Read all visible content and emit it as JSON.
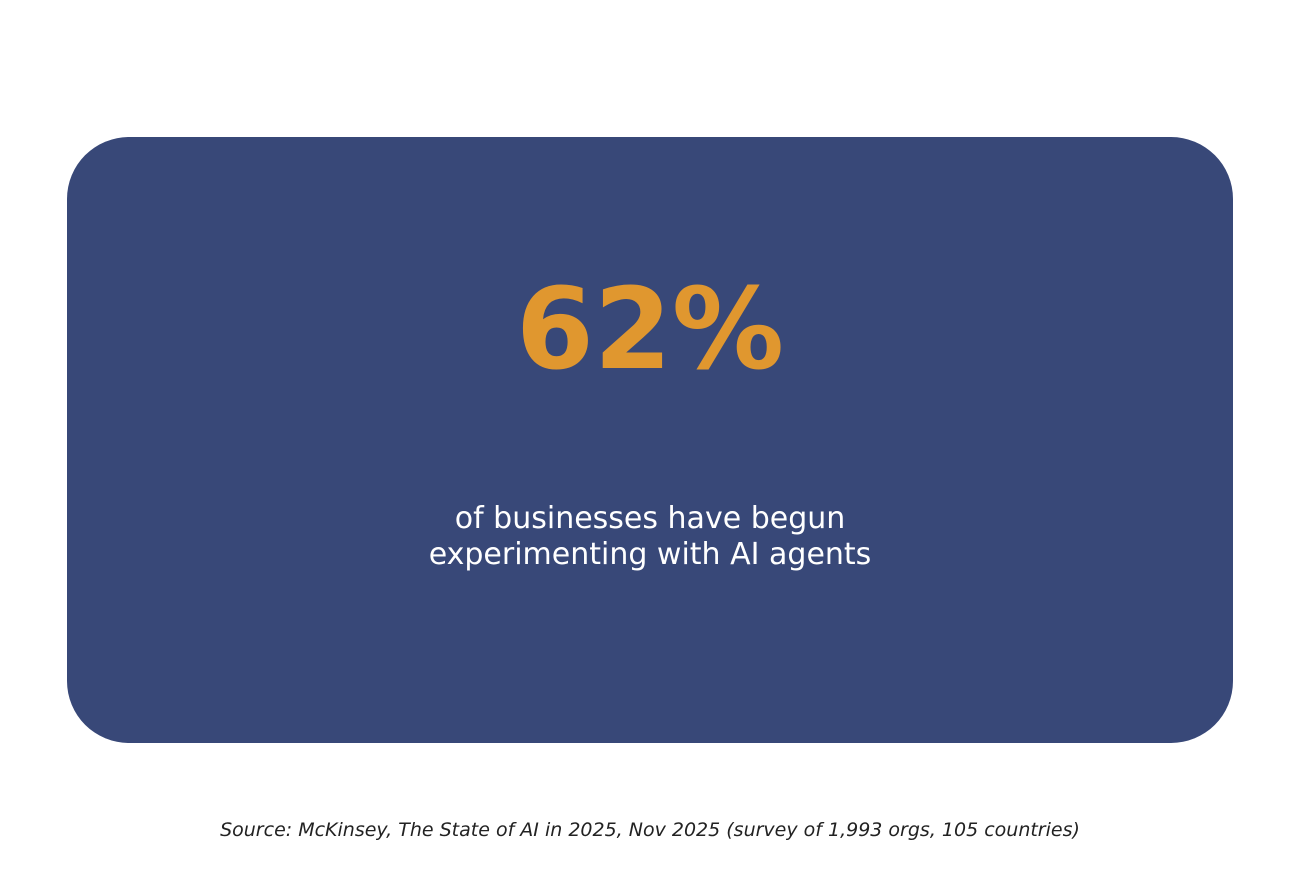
{
  "card": {
    "stat": "62%",
    "description": [
      "of businesses have begun",
      "experimenting with AI agents"
    ]
  },
  "source": "Source: McKinsey, The State of AI in 2025, Nov 2025 (survey of 1,993 orgs, 105 countries)"
}
